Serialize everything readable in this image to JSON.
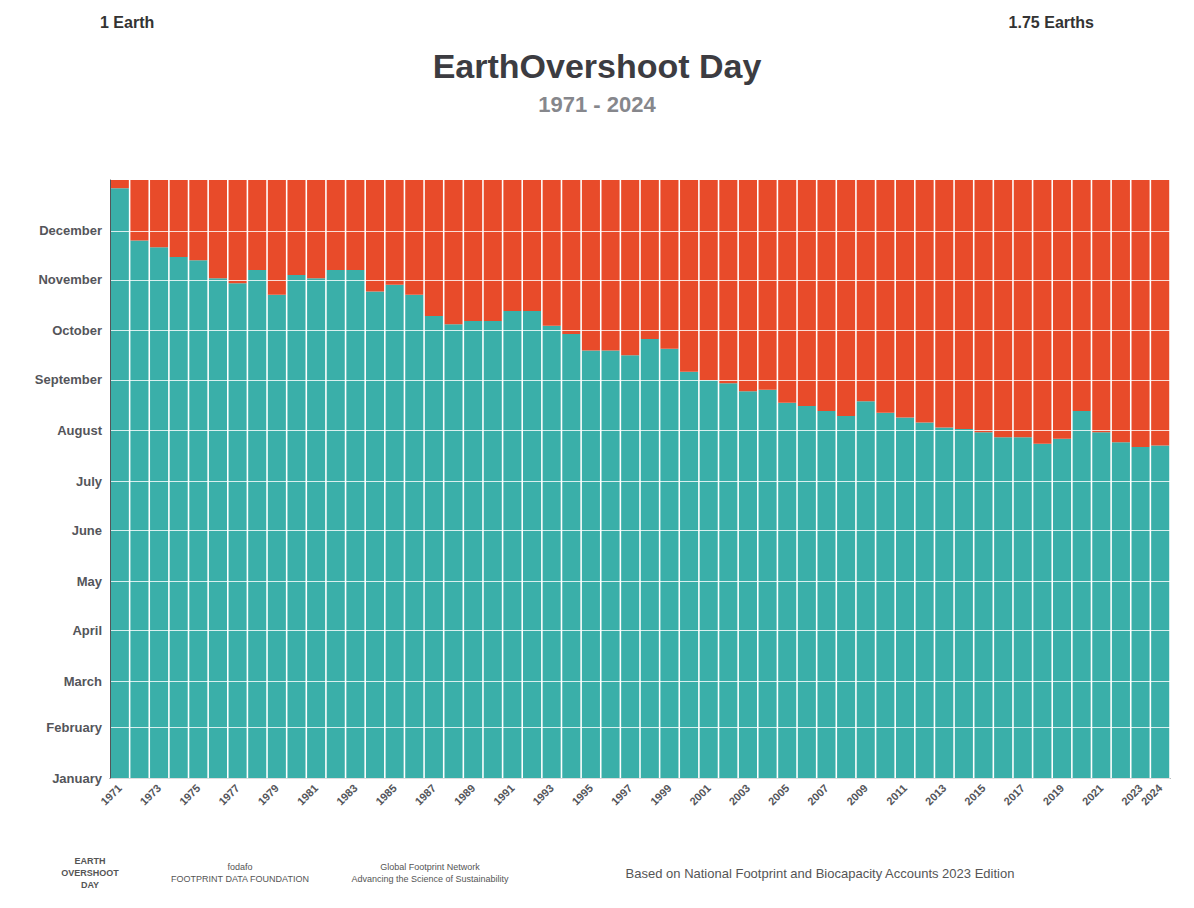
{
  "chart_data": {
    "type": "bar",
    "stacked": true,
    "title": "EarthOvershoot Day",
    "subtitle": "1971 - 2024",
    "annotations": [
      "1 Earth",
      "1.75 Earths",
      "Based on National Footprint and Biocapacity Accounts 2023 Edition",
      "EARTH\nOVERSHOOT\nDAY",
      "fodafo\nFOOTPRINT DATA FOUNDATION",
      "Global Footprint Network\nAdvancing the Science of Sustainability"
    ],
    "categories": [
      "1971",
      null,
      "1973",
      null,
      "1975",
      null,
      "1977",
      null,
      "1979",
      null,
      "1981",
      null,
      "1983",
      null,
      "1985",
      null,
      "1987",
      null,
      "1989",
      null,
      "1991",
      null,
      "1993",
      null,
      "1995",
      null,
      "1997",
      null,
      "1999",
      null,
      "2001",
      null,
      "2003",
      null,
      "2005",
      null,
      "2007",
      null,
      "2009",
      null,
      "2011",
      null,
      "2013",
      null,
      "2015",
      null,
      "2017",
      null,
      "2019",
      null,
      "2021",
      null,
      "2023",
      "2024"
    ],
    "series": [
      {
        "color": "#3aafa9",
        "values": [
          360,
          328,
          324,
          318,
          316,
          305,
          302,
          310,
          295,
          307,
          305,
          310,
          310,
          297,
          301,
          295,
          282,
          277,
          279,
          279,
          285,
          285,
          276,
          271,
          261,
          261,
          258,
          268,
          262,
          248,
          243,
          241,
          236,
          237,
          229,
          227,
          224,
          221,
          230,
          223,
          220,
          217,
          214,
          213,
          211,
          208,
          208,
          204,
          207,
          224,
          211,
          205,
          202,
          203
        ]
      },
      {
        "color": "#e84b2a",
        "values": [
          5,
          37,
          41,
          47,
          49,
          60,
          63,
          55,
          70,
          58,
          60,
          55,
          55,
          68,
          64,
          70,
          83,
          88,
          86,
          86,
          80,
          80,
          89,
          94,
          104,
          104,
          107,
          97,
          103,
          117,
          122,
          124,
          129,
          128,
          136,
          138,
          141,
          144,
          135,
          142,
          145,
          148,
          151,
          152,
          154,
          157,
          157,
          161,
          158,
          141,
          154,
          160,
          163,
          162
        ]
      }
    ],
    "ylim": [
      0,
      365
    ],
    "yticks": [
      {
        "value": 0,
        "label": "January"
      },
      {
        "value": 31,
        "label": "February"
      },
      {
        "value": 59,
        "label": "March"
      },
      {
        "value": 90,
        "label": "April"
      },
      {
        "value": 120,
        "label": "May"
      },
      {
        "value": 151,
        "label": "June"
      },
      {
        "value": 181,
        "label": "July"
      },
      {
        "value": 212,
        "label": "August"
      },
      {
        "value": 243,
        "label": "September"
      },
      {
        "value": 273,
        "label": "October"
      },
      {
        "value": 304,
        "label": "November"
      },
      {
        "value": 334,
        "label": "December"
      }
    ],
    "grid": true
  }
}
